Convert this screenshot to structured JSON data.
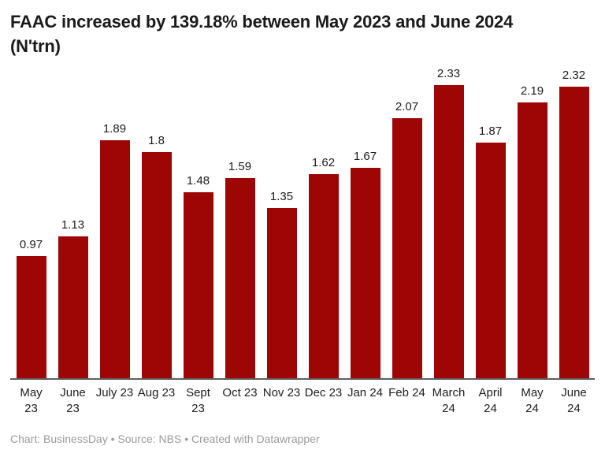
{
  "title": "FAAC increased by 139.18% between May 2023 and June 2024 (N'trn)",
  "footer": {
    "text": "Chart: BusinessDay • Source: NBS • Created with Datawrapper"
  },
  "colors": {
    "bar": "#9e0505",
    "axis_line": "#5f5f5f",
    "title_text": "#1a1a1a",
    "label_text": "#1d1d1d",
    "footer_text": "#9b9b9b",
    "background": "#ffffff"
  },
  "chart_data": {
    "type": "bar",
    "title": "FAAC increased by 139.18% between May 2023 and June 2024 (N'trn)",
    "categories": [
      "May 23",
      "June 23",
      "July 23",
      "Aug 23",
      "Sept 23",
      "Oct 23",
      "Nov 23",
      "Dec 23",
      "Jan 24",
      "Feb 24",
      "March 24",
      "April 24",
      "May 24",
      "June 24"
    ],
    "category_lines": [
      [
        "May",
        "23"
      ],
      [
        "June",
        "23"
      ],
      [
        "July 23"
      ],
      [
        "Aug 23"
      ],
      [
        "Sept",
        "23"
      ],
      [
        "Oct 23"
      ],
      [
        "Nov 23"
      ],
      [
        "Dec 23"
      ],
      [
        "Jan 24"
      ],
      [
        "Feb 24"
      ],
      [
        "March",
        "24"
      ],
      [
        "April",
        "24"
      ],
      [
        "May",
        "24"
      ],
      [
        "June",
        "24"
      ]
    ],
    "values": [
      0.97,
      1.13,
      1.89,
      1.8,
      1.48,
      1.59,
      1.35,
      1.62,
      1.67,
      2.07,
      2.33,
      1.87,
      2.19,
      2.32
    ],
    "value_labels": [
      "0.97",
      "1.13",
      "1.89",
      "1.8",
      "1.48",
      "1.59",
      "1.35",
      "1.62",
      "1.67",
      "2.07",
      "2.33",
      "1.87",
      "2.19",
      "2.32"
    ],
    "xlabel": "",
    "ylabel": "",
    "ylim": [
      0,
      2.33
    ],
    "grid": false,
    "legend": "none",
    "data_labels": "above-bars",
    "bar_color": "#9e0505"
  }
}
